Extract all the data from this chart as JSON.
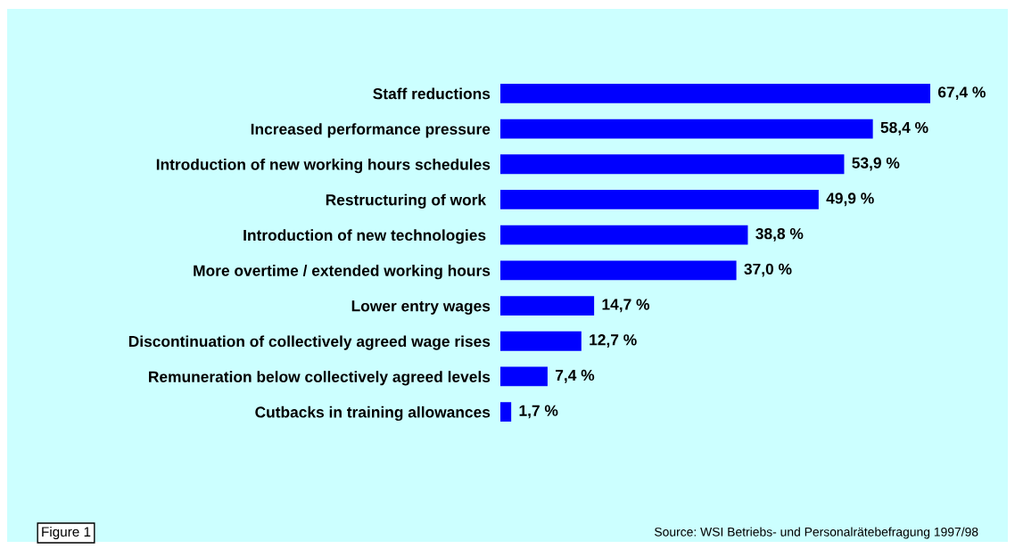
{
  "chart_data": {
    "type": "bar",
    "orientation": "horizontal",
    "categories": [
      "Staff reductions",
      "Increased performance pressure",
      "Introduction of new working hours schedules",
      "Restructuring of work ",
      "Introduction of new technologies ",
      "More overtime / extended working hours",
      "Lower entry wages",
      "Discontinuation of collectively agreed wage rises",
      "Remuneration below collectively agreed levels",
      "Cutbacks in training allowances"
    ],
    "values": [
      67.4,
      58.4,
      53.9,
      49.9,
      38.8,
      37.0,
      14.7,
      12.7,
      7.4,
      1.7
    ],
    "value_labels": [
      "67,4 %",
      "58,4 %",
      "53,9 %",
      "49,9 %",
      "38,8 %",
      "37,0 %",
      "14,7 %",
      "12,7 %",
      "7,4 %",
      "1,7 %"
    ],
    "color": "#0000ff",
    "annotations": [
      "Figure 1",
      "Source: WSI Betriebs- und Personalrätebefragung 1997/98"
    ]
  }
}
